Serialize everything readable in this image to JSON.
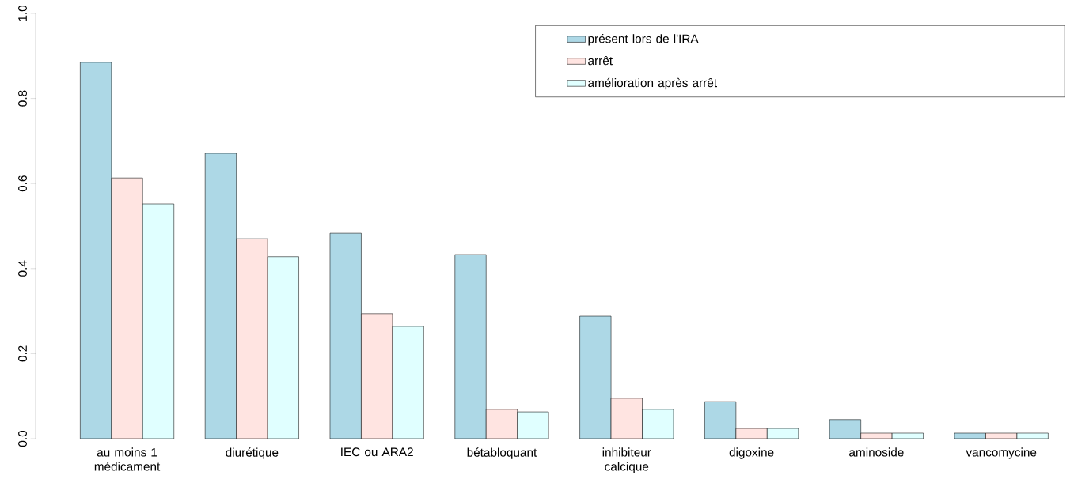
{
  "chart_data": {
    "type": "bar",
    "categories": [
      "au moins 1 médicament",
      "diurétique",
      "IEC ou ARA2",
      "bétabloquant",
      "inhibiteur calcique",
      "digoxine",
      "aminoside",
      "vancomycine"
    ],
    "series": [
      {
        "name": "présent lors de l'IRA",
        "color": "#add8e6",
        "values": [
          0.885,
          0.671,
          0.483,
          0.433,
          0.288,
          0.087,
          0.045,
          0.013
        ]
      },
      {
        "name": "arrêt",
        "color": "#ffe4e1",
        "values": [
          0.613,
          0.47,
          0.294,
          0.069,
          0.095,
          0.024,
          0.013,
          0.013
        ]
      },
      {
        "name": "amélioration après arrêt",
        "color": "#e0ffff",
        "values": [
          0.552,
          0.428,
          0.264,
          0.063,
          0.069,
          0.024,
          0.013,
          0.013
        ]
      }
    ],
    "ylim": [
      0,
      1
    ],
    "yticks": [
      {
        "value": 0,
        "label": "0.0"
      },
      0.2,
      0.4,
      0.6,
      0.8,
      {
        "value": 1,
        "label": "1.0"
      }
    ],
    "legend": "top right",
    "grid": false
  }
}
